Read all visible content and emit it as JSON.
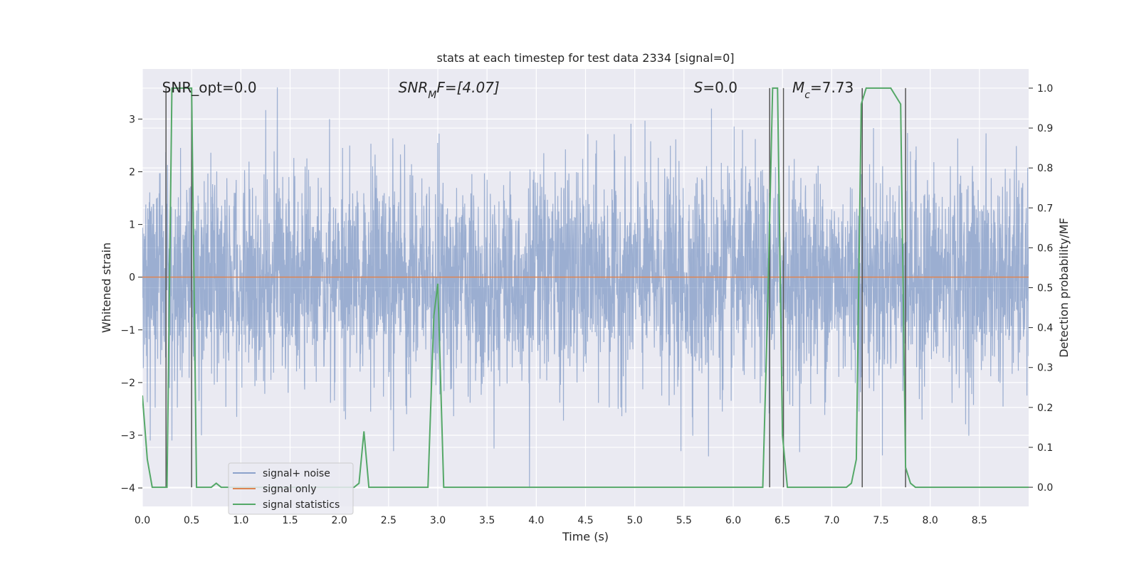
{
  "chart_data": {
    "type": "line",
    "title": "stats at each timestep for test data 2334 [signal=0]",
    "xlabel": "Time (s)",
    "ylabel": "Whitened strain",
    "y2label": "Detection probability/MF",
    "xlim": [
      0,
      9
    ],
    "ylim": [
      -4.35,
      3.95
    ],
    "y2lim": [
      -0.048,
      1.048
    ],
    "x_ticks": [
      0.0,
      0.5,
      1.0,
      1.5,
      2.0,
      2.5,
      3.0,
      3.5,
      4.0,
      4.5,
      5.0,
      5.5,
      6.0,
      6.5,
      7.0,
      7.5,
      8.0,
      8.5
    ],
    "x_tick_labels": [
      "0.0",
      "0.5",
      "1.0",
      "1.5",
      "2.0",
      "2.5",
      "3.0",
      "3.5",
      "4.0",
      "4.5",
      "5.0",
      "5.5",
      "6.0",
      "6.5",
      "7.0",
      "7.5",
      "8.0",
      "8.5"
    ],
    "y_ticks": [
      3,
      2,
      1,
      0,
      -1,
      -2,
      -3,
      -4
    ],
    "y_tick_labels": [
      "3",
      "2",
      "1",
      "0",
      "−1",
      "−2",
      "−3",
      "−4"
    ],
    "y2_ticks": [
      1.0,
      0.9,
      0.8,
      0.7,
      0.6,
      0.5,
      0.4,
      0.3,
      0.2,
      0.1,
      0.0
    ],
    "y2_tick_labels": [
      "1.0",
      "0.9",
      "0.8",
      "0.7",
      "0.6",
      "0.5",
      "0.4",
      "0.3",
      "0.2",
      "0.1",
      "0.0"
    ],
    "grid": true,
    "legend_position": "lower-left",
    "annotations": [
      {
        "text": "SNR_opt=0.0",
        "x": 0.2,
        "y": 3.6
      },
      {
        "prefix": "SNR",
        "sub": "M",
        "suffix": "F=[4.07]",
        "x": 2.6,
        "y": 3.6
      },
      {
        "prefix": "S",
        "sub": "",
        "suffix": "=0.0",
        "x": 5.6,
        "y": 3.6
      },
      {
        "prefix": "M",
        "sub": "c",
        "suffix": "=7.73",
        "x": 6.6,
        "y": 3.6
      }
    ],
    "series": [
      {
        "name": "signal+ noise",
        "color": "#4c72b0",
        "axis": "left",
        "kind": "noise",
        "envelope_min": -3.4,
        "envelope_max": 3.6,
        "peaks": [
          {
            "x": 0.08,
            "y": -3.1
          },
          {
            "x": 0.3,
            "y": -3.1
          },
          {
            "x": 1.37,
            "y": 3.6
          },
          {
            "x": 1.9,
            "y": 3.0
          },
          {
            "x": 2.55,
            "y": -3.3
          },
          {
            "x": 3.93,
            "y": -4.0
          },
          {
            "x": 5.78,
            "y": 3.2
          },
          {
            "x": 5.47,
            "y": -3.3
          },
          {
            "x": 5.75,
            "y": -3.4
          }
        ]
      },
      {
        "name": "signal only",
        "color": "#dd8452",
        "axis": "left",
        "x": [
          0,
          9
        ],
        "y": [
          0,
          0
        ]
      },
      {
        "name": "signal statistics",
        "color": "#55a868",
        "axis": "right",
        "x": [
          0.0,
          0.05,
          0.1,
          0.15,
          0.2,
          0.25,
          0.3,
          0.35,
          0.4,
          0.45,
          0.5,
          0.55,
          0.6,
          0.65,
          0.7,
          0.75,
          0.8,
          0.85,
          0.9,
          0.95,
          1.0,
          2.15,
          2.2,
          2.25,
          2.3,
          2.4,
          2.5,
          2.6,
          2.9,
          2.96,
          3.0,
          3.06,
          3.12,
          3.2,
          6.3,
          6.35,
          6.4,
          6.45,
          6.5,
          6.55,
          6.6,
          6.65,
          7.15,
          7.2,
          7.25,
          7.3,
          7.35,
          7.4,
          7.45,
          7.5,
          7.6,
          7.7,
          7.75,
          7.8,
          7.85,
          7.9,
          7.95,
          8.0,
          8.1,
          8.9,
          9.0
        ],
        "y": [
          0.23,
          0.07,
          0.0,
          0.0,
          0.0,
          0.0,
          1.0,
          1.0,
          1.0,
          1.0,
          1.0,
          0.0,
          0.0,
          0.0,
          0.0,
          0.01,
          0.0,
          0.0,
          0.0,
          0.0,
          0.0,
          0.0,
          0.01,
          0.14,
          0.0,
          0.0,
          0.0,
          0.0,
          0.0,
          0.43,
          0.51,
          0.0,
          0.0,
          0.0,
          0.0,
          0.45,
          1.0,
          1.0,
          0.13,
          0.0,
          0.0,
          0.0,
          0.0,
          0.01,
          0.07,
          0.96,
          1.0,
          1.0,
          1.0,
          1.0,
          1.0,
          0.96,
          0.05,
          0.01,
          0.0,
          0.0,
          0.0,
          0.0,
          0.0,
          0.0,
          0.0
        ]
      }
    ],
    "vertical_lines": {
      "color": "#555555",
      "x": [
        0.24,
        0.5,
        6.37,
        6.51,
        7.31,
        7.75
      ]
    },
    "colors": {
      "background": "#eaeaf2",
      "grid": "#ffffff",
      "text": "#262626"
    }
  }
}
